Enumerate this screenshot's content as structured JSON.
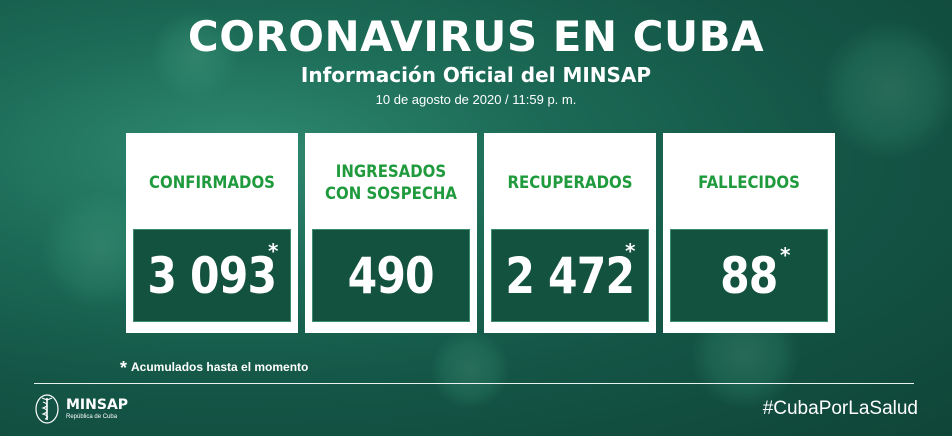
{
  "header": {
    "title": "CORONAVIRUS EN CUBA",
    "subtitle": "Información Oficial del MINSAP",
    "date": "10 de agosto de 2020 / 11:59 p. m."
  },
  "cards": [
    {
      "label": "CONFIRMADOS",
      "value": "3 093",
      "asterisk": "*"
    },
    {
      "label": "INGRESADOS\nCON SOSPECHA",
      "value": "490"
    },
    {
      "label": "RECUPERADOS",
      "value": "2 472",
      "asterisk": "*"
    },
    {
      "label": "FALLECIDOS",
      "value": "88",
      "asterisk": "*"
    }
  ],
  "footnote": {
    "star": "*",
    "text": "Acumulados hasta el momento"
  },
  "logo": {
    "brand": "MINSAP",
    "country": "República de Cuba",
    "icon": "caduceus-icon"
  },
  "hashtag": "#CubaPorLaSalud",
  "colors": {
    "background": "#1c6b57",
    "label_green": "#1f9a3d",
    "value_box": "#13523f",
    "card": "#ffffff"
  }
}
